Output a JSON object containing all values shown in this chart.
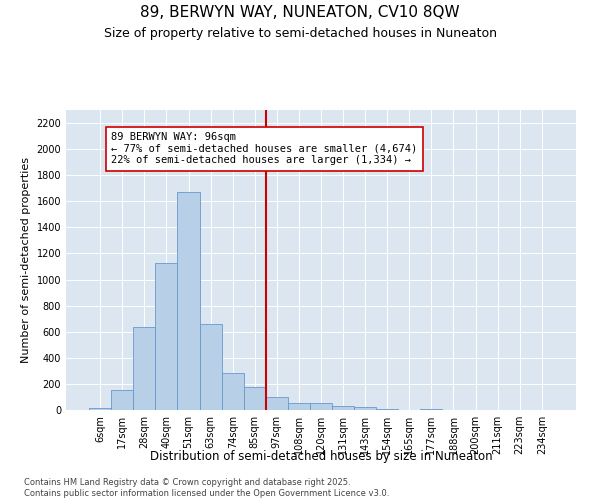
{
  "title1": "89, BERWYN WAY, NUNEATON, CV10 8QW",
  "title2": "Size of property relative to semi-detached houses in Nuneaton",
  "xlabel": "Distribution of semi-detached houses by size in Nuneaton",
  "ylabel": "Number of semi-detached properties",
  "bar_labels": [
    "6sqm",
    "17sqm",
    "28sqm",
    "40sqm",
    "51sqm",
    "63sqm",
    "74sqm",
    "85sqm",
    "97sqm",
    "108sqm",
    "120sqm",
    "131sqm",
    "143sqm",
    "154sqm",
    "165sqm",
    "177sqm",
    "188sqm",
    "200sqm",
    "211sqm",
    "223sqm",
    "234sqm"
  ],
  "bar_values": [
    18,
    155,
    640,
    1130,
    1670,
    660,
    285,
    175,
    100,
    50,
    50,
    32,
    25,
    8,
    0,
    4,
    0,
    0,
    0,
    0,
    0
  ],
  "bar_color": "#b8cfe8",
  "bar_edge_color": "#6699cc",
  "vline_color": "#cc0000",
  "vline_x_index": 8,
  "annotation_text": "89 BERWYN WAY: 96sqm\n← 77% of semi-detached houses are smaller (4,674)\n22% of semi-detached houses are larger (1,334) →",
  "annotation_box_color": "#cc0000",
  "ylim": [
    0,
    2300
  ],
  "yticks": [
    0,
    200,
    400,
    600,
    800,
    1000,
    1200,
    1400,
    1600,
    1800,
    2000,
    2200
  ],
  "background_color": "#dce6f0",
  "footer": "Contains HM Land Registry data © Crown copyright and database right 2025.\nContains public sector information licensed under the Open Government Licence v3.0.",
  "title1_fontsize": 11,
  "title2_fontsize": 9,
  "xlabel_fontsize": 8.5,
  "ylabel_fontsize": 8,
  "tick_fontsize": 7,
  "annotation_fontsize": 7.5,
  "footer_fontsize": 6
}
